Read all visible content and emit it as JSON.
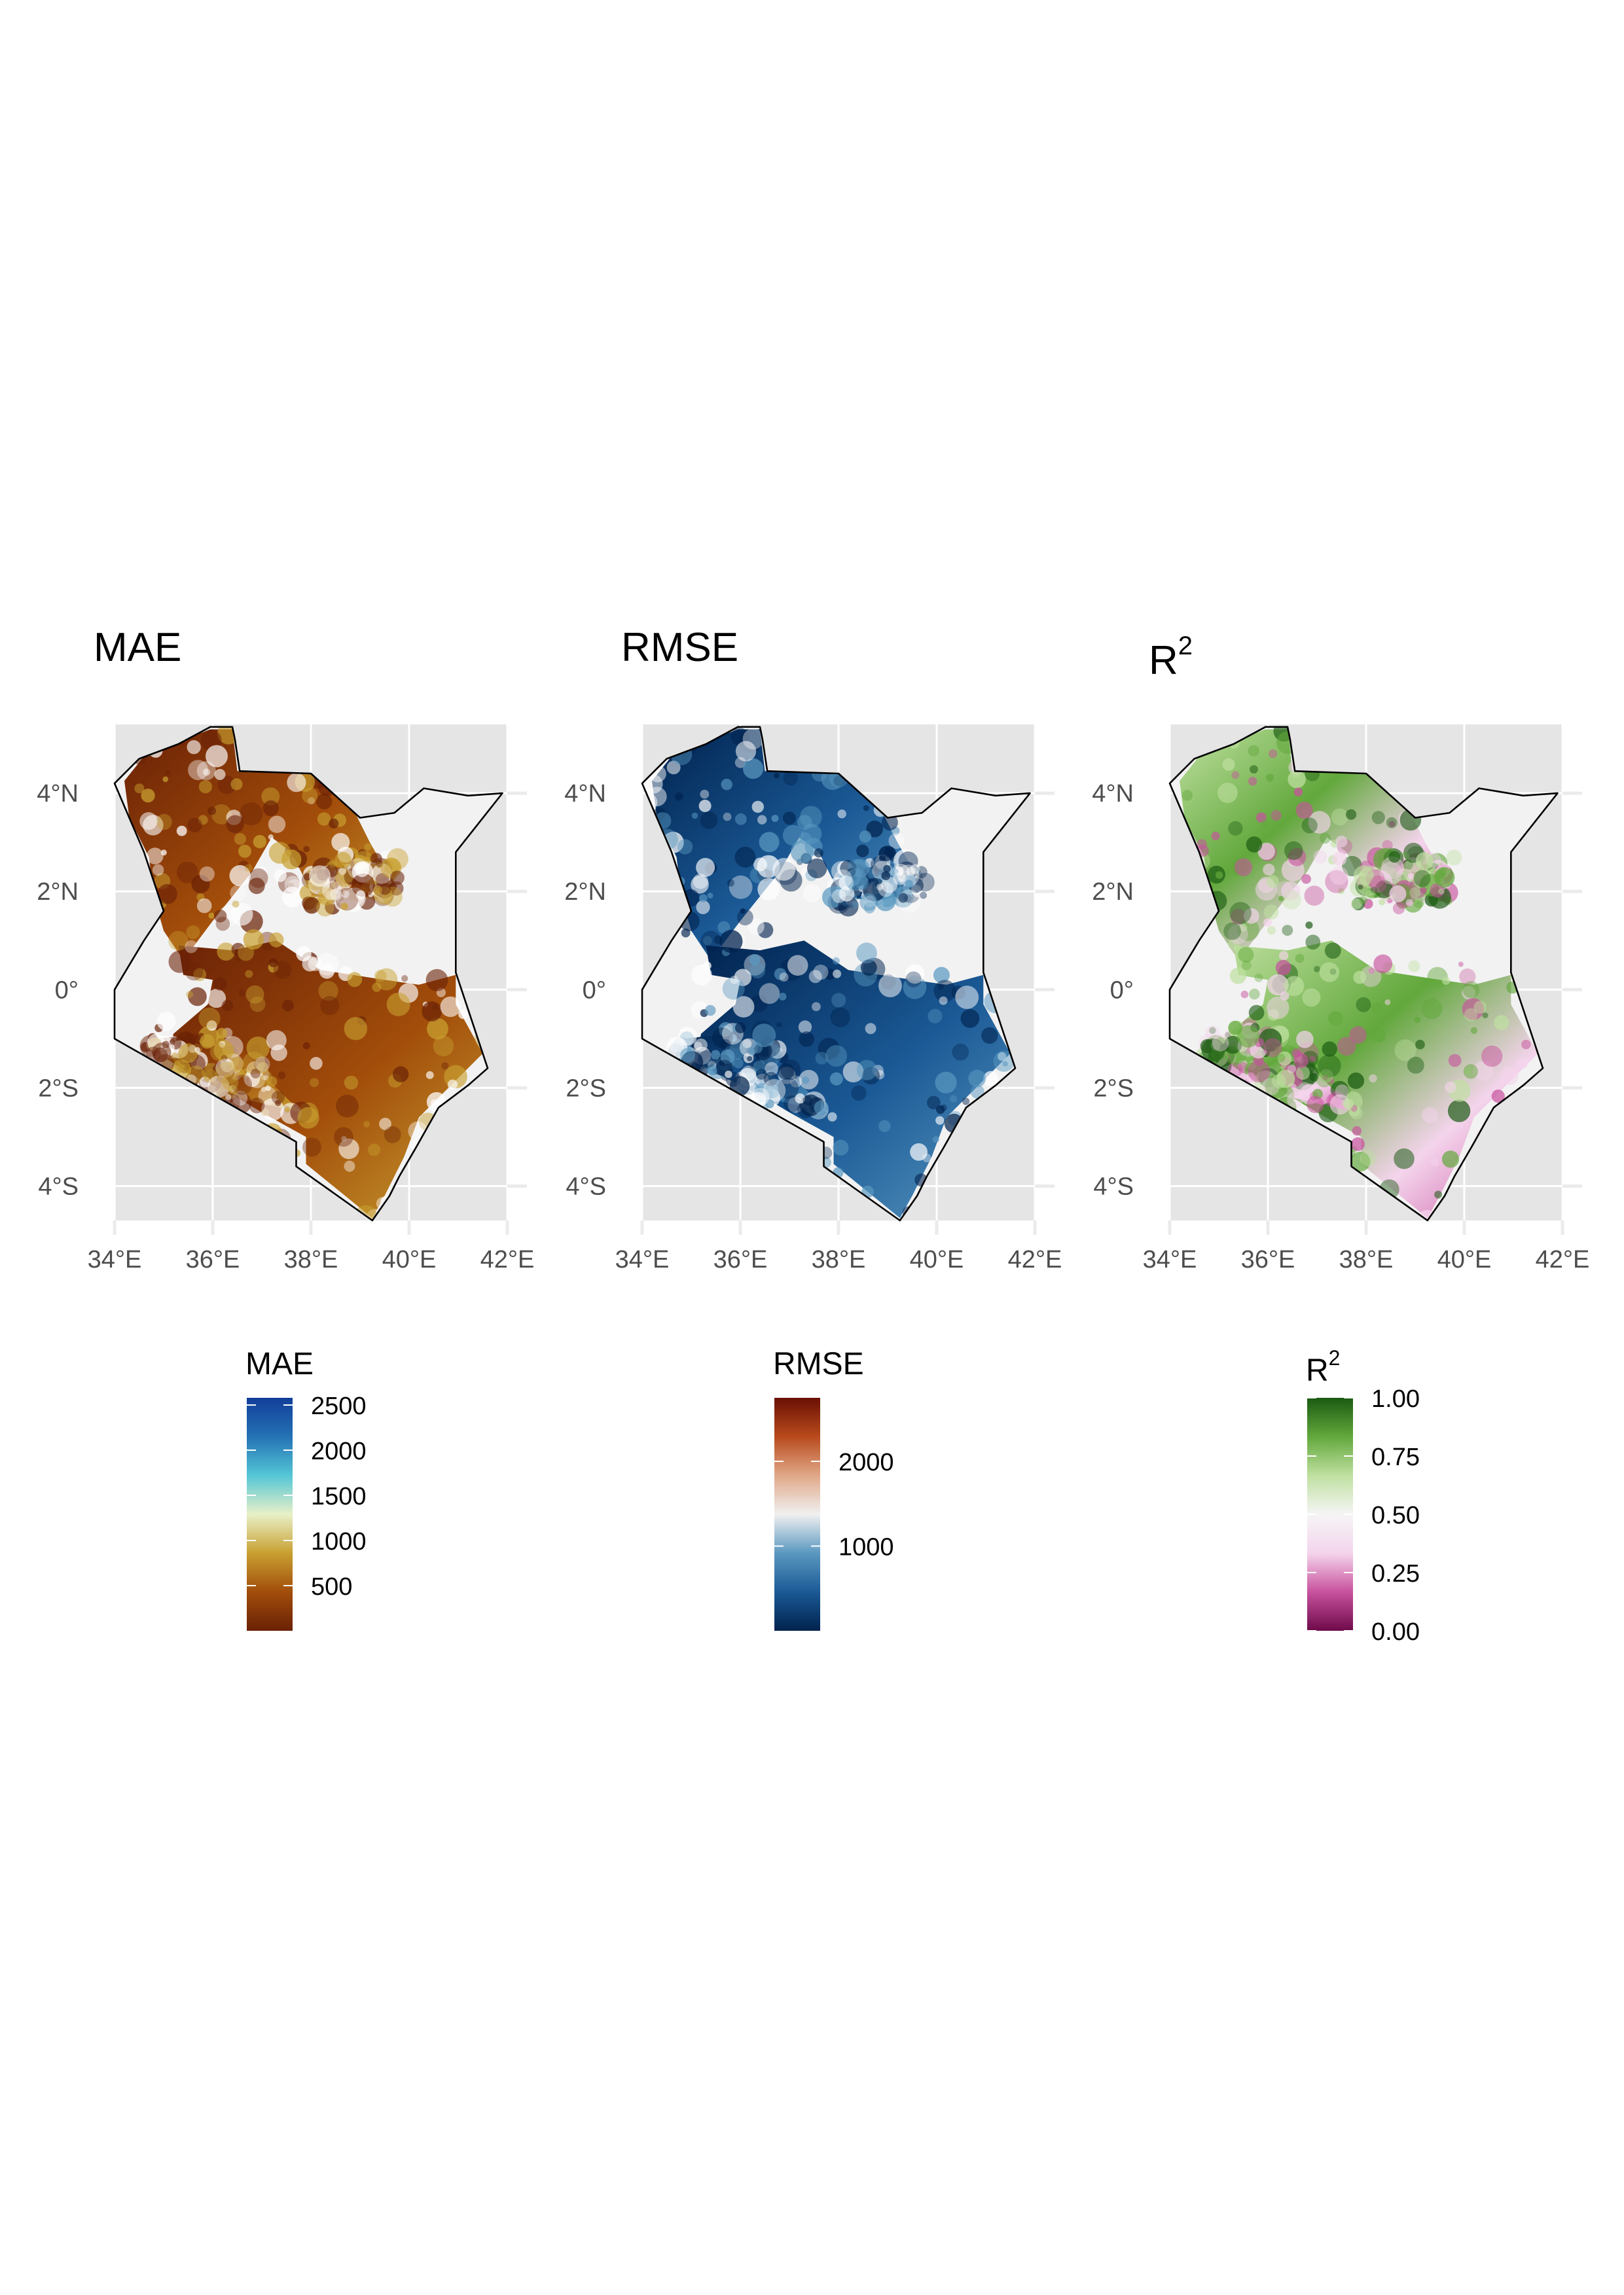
{
  "panels": [
    {
      "key": "mae",
      "title": "MAE",
      "title_sup": "",
      "palette": [
        "#6a2106",
        "#a24d0a",
        "#c8a030",
        "#e8f0c8",
        "#54c6d6",
        "#2472b4",
        "#113e9a"
      ],
      "legend": {
        "title": "MAE",
        "title_sup": "",
        "min": 0,
        "max": 2580,
        "ticks": [
          {
            "value": 500,
            "label": "500"
          },
          {
            "value": 1000,
            "label": "1000"
          },
          {
            "value": 1500,
            "label": "1500"
          },
          {
            "value": 2000,
            "label": "2000"
          },
          {
            "value": 2500,
            "label": "2500"
          }
        ]
      }
    },
    {
      "key": "rmse",
      "title": "RMSE",
      "title_sup": "",
      "palette": [
        "#00224e",
        "#1b5a96",
        "#5a98c0",
        "#f0f0f0",
        "#e0a888",
        "#b84a1c",
        "#6a1004"
      ],
      "legend": {
        "title": "RMSE",
        "title_sup": "",
        "min": 0,
        "max": 2750,
        "ticks": [
          {
            "value": 1000,
            "label": "1000"
          },
          {
            "value": 2000,
            "label": "2000"
          }
        ]
      }
    },
    {
      "key": "r2",
      "title": "R",
      "title_sup": "2",
      "palette": [
        "#6e0a4a",
        "#c8529e",
        "#f4d4ec",
        "#f5f5f5",
        "#bfe0a0",
        "#62a83c",
        "#1a5a12"
      ],
      "legend": {
        "title": "R",
        "title_sup": "2",
        "min": 0,
        "max": 1,
        "ticks": [
          {
            "value": 0,
            "label": "0.00"
          },
          {
            "value": 0.25,
            "label": "0.25"
          },
          {
            "value": 0.5,
            "label": "0.50"
          },
          {
            "value": 0.75,
            "label": "0.75"
          },
          {
            "value": 1,
            "label": "1.00"
          }
        ]
      }
    }
  ],
  "axes": {
    "x_ticks": [
      {
        "value": 34,
        "label": "34°E"
      },
      {
        "value": 36,
        "label": "36°E"
      },
      {
        "value": 38,
        "label": "38°E"
      },
      {
        "value": 40,
        "label": "40°E"
      },
      {
        "value": 42,
        "label": "42°E"
      }
    ],
    "y_ticks": [
      {
        "value": 4,
        "label": "4°N"
      },
      {
        "value": 2,
        "label": "2°N"
      },
      {
        "value": 0,
        "label": "0°"
      },
      {
        "value": -2,
        "label": "2°S"
      },
      {
        "value": -4,
        "label": "4°S"
      }
    ],
    "lon_range": [
      34,
      42
    ],
    "lat_range": [
      -4.7,
      5.4
    ]
  },
  "boundary": [
    [
      35.95,
      5.35
    ],
    [
      36.4,
      5.35
    ],
    [
      36.45,
      5.1
    ],
    [
      36.55,
      4.45
    ],
    [
      38.0,
      4.4
    ],
    [
      39.0,
      3.5
    ],
    [
      39.7,
      3.6
    ],
    [
      40.3,
      4.1
    ],
    [
      41.2,
      3.95
    ],
    [
      41.9,
      4.0
    ],
    [
      40.95,
      2.8
    ],
    [
      40.95,
      2.5
    ],
    [
      40.95,
      0.35
    ],
    [
      41.6,
      -1.6
    ],
    [
      41.2,
      -1.95
    ],
    [
      40.6,
      -2.4
    ],
    [
      40.15,
      -3.2
    ],
    [
      39.8,
      -3.8
    ],
    [
      39.6,
      -4.2
    ],
    [
      39.25,
      -4.7
    ],
    [
      37.7,
      -3.6
    ],
    [
      37.7,
      -3.1
    ],
    [
      34.0,
      -1.0
    ],
    [
      34.0,
      0.0
    ],
    [
      34.3,
      0.5
    ],
    [
      34.6,
      1.0
    ],
    [
      35.0,
      1.6
    ],
    [
      34.6,
      2.8
    ],
    [
      34.0,
      4.2
    ],
    [
      34.5,
      4.7
    ],
    [
      35.3,
      5.0
    ]
  ],
  "data_regions": [
    [
      [
        34.2,
        4.25
      ],
      [
        34.6,
        4.75
      ],
      [
        35.3,
        5.05
      ],
      [
        35.95,
        5.3
      ],
      [
        36.4,
        5.3
      ],
      [
        36.5,
        4.45
      ],
      [
        38.0,
        4.4
      ],
      [
        38.9,
        3.6
      ],
      [
        39.2,
        3.0
      ],
      [
        39.6,
        2.3
      ],
      [
        39.3,
        2.0
      ],
      [
        38.6,
        1.8
      ],
      [
        38.0,
        2.0
      ],
      [
        37.6,
        2.8
      ],
      [
        37.2,
        3.1
      ],
      [
        36.8,
        2.4
      ],
      [
        36.4,
        1.9
      ],
      [
        36.0,
        1.4
      ],
      [
        35.7,
        1.0
      ],
      [
        35.4,
        0.6
      ],
      [
        35.0,
        1.2
      ],
      [
        34.8,
        1.9
      ],
      [
        34.7,
        2.7
      ],
      [
        34.3,
        3.5
      ]
    ],
    [
      [
        35.3,
        0.9
      ],
      [
        36.4,
        0.8
      ],
      [
        37.3,
        1.0
      ],
      [
        38.2,
        0.4
      ],
      [
        39.5,
        0.2
      ],
      [
        40.2,
        0.1
      ],
      [
        40.95,
        0.3
      ],
      [
        40.95,
        -0.3
      ],
      [
        41.5,
        -1.3
      ],
      [
        40.8,
        -2.0
      ],
      [
        40.2,
        -2.6
      ],
      [
        39.9,
        -3.4
      ],
      [
        39.5,
        -4.2
      ],
      [
        39.25,
        -4.65
      ],
      [
        37.9,
        -3.55
      ],
      [
        37.9,
        -3.0
      ],
      [
        37.0,
        -2.5
      ],
      [
        36.0,
        -1.9
      ],
      [
        35.1,
        -1.4
      ],
      [
        35.2,
        -0.9
      ],
      [
        35.9,
        -0.3
      ],
      [
        36.0,
        0.2
      ],
      [
        35.4,
        0.3
      ]
    ],
    [
      [
        34.8,
        -1.0
      ],
      [
        35.9,
        -0.9
      ],
      [
        36.6,
        -1.2
      ],
      [
        37.0,
        -1.7
      ],
      [
        37.8,
        -2.5
      ],
      [
        36.5,
        -2.2
      ],
      [
        35.5,
        -1.7
      ],
      [
        34.9,
        -1.3
      ]
    ],
    [
      [
        38.1,
        2.3
      ],
      [
        38.9,
        2.6
      ],
      [
        39.6,
        2.5
      ],
      [
        39.6,
        2.0
      ],
      [
        38.8,
        1.8
      ],
      [
        38.0,
        1.9
      ]
    ]
  ]
}
